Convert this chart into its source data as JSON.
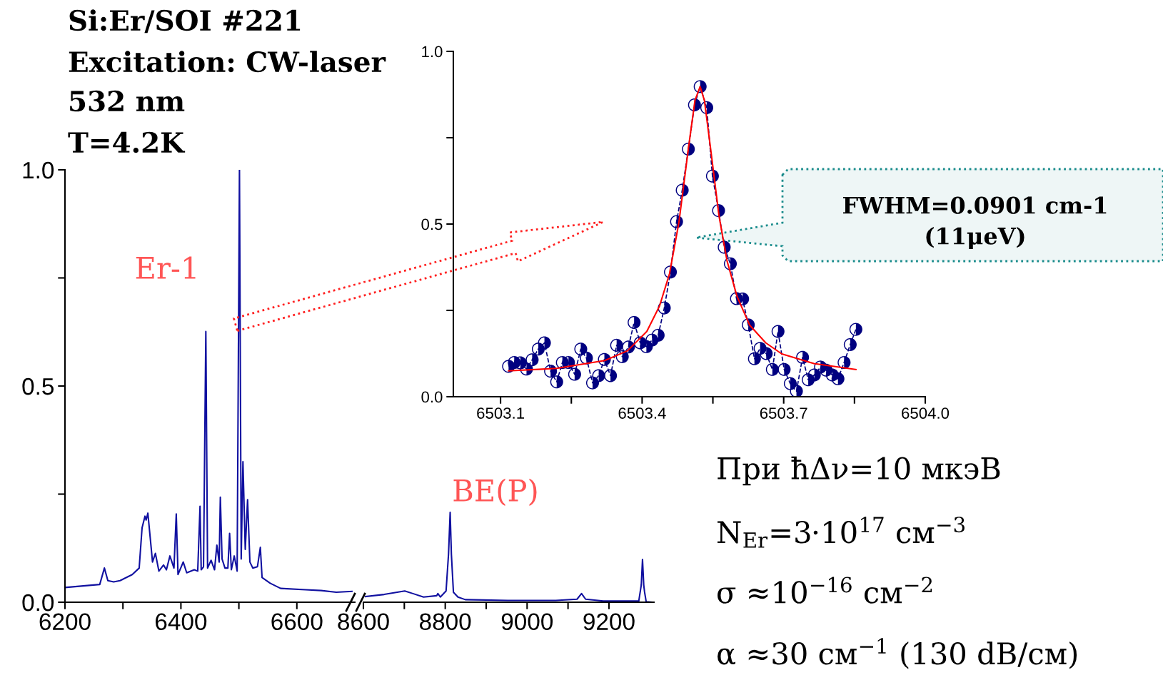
{
  "chart_data": [
    {
      "type": "line",
      "xlim": [
        6200,
        6700
      ],
      "ylim": [
        0,
        1.0
      ],
      "xticks": [
        6200,
        {
          "value": 6300,
          "label": null
        },
        6400,
        {
          "value": 6500,
          "label": null
        },
        6600
      ],
      "yticks": [
        {
          "value": 0,
          "label": "0.0"
        },
        {
          "value": 0.25,
          "label": null
        },
        {
          "value": 0.5,
          "label": "0.5"
        },
        {
          "value": 0.75,
          "label": null
        },
        {
          "value": 1.0,
          "label": "1.0"
        }
      ],
      "annotations": [
        "Si:Er/SOI #221",
        "Excitation: CW-laser",
        "532 nm",
        "T=4.2K",
        "Er-1"
      ],
      "series": [
        {
          "color": "#1010a0",
          "x": [
            6200,
            6242,
            6260,
            6268,
            6274,
            6284,
            6295,
            6316,
            6328,
            6333,
            6338,
            6340,
            6343,
            6347,
            6351,
            6356,
            6362,
            6370,
            6375,
            6381,
            6388,
            6392,
            6395,
            6404,
            6410,
            6423,
            6429,
            6433,
            6435,
            6439,
            6443,
            6446,
            6452,
            6458,
            6462,
            6466,
            6468,
            6471,
            6476,
            6481,
            6484,
            6487,
            6492,
            6497,
            6501,
            6504,
            6507,
            6511,
            6515,
            6519,
            6524,
            6532,
            6537,
            6540,
            6554,
            6572,
            6615,
            6642,
            6668,
            6695
          ],
          "values": [
            0.034,
            0.039,
            0.041,
            0.079,
            0.05,
            0.047,
            0.05,
            0.064,
            0.079,
            0.172,
            0.199,
            0.19,
            0.206,
            0.15,
            0.093,
            0.113,
            0.072,
            0.086,
            0.075,
            0.107,
            0.079,
            0.204,
            0.064,
            0.093,
            0.068,
            0.075,
            0.072,
            0.222,
            0.075,
            0.082,
            0.626,
            0.079,
            0.097,
            0.075,
            0.132,
            0.093,
            0.243,
            0.1,
            0.079,
            0.079,
            0.159,
            0.075,
            0.107,
            0.072,
            1.0,
            0.1,
            0.325,
            0.122,
            0.237,
            0.093,
            0.079,
            0.082,
            0.127,
            0.057,
            0.044,
            0.032,
            0.029,
            0.027,
            0.023,
            0.025
          ]
        }
      ]
    },
    {
      "type": "line",
      "xlim": [
        8600,
        9310
      ],
      "ylim": [
        0,
        1.0
      ],
      "tick_labels": "x",
      "xticks": [
        8600,
        {
          "value": 8700,
          "label": null
        },
        8800,
        {
          "value": 8900,
          "label": null
        },
        9000,
        {
          "value": 9100,
          "label": null
        },
        9200
      ],
      "annotations": [
        "BE(P)",
        "При ħΔν=10 мкэВ",
        "N$_{Er}$=3·10$^{17}$ см$^{−3}$",
        "σ ≈10$^{−16}$ см$^{−2}$",
        "α ≈30 см$^{−1}$ (130 dB/см)"
      ],
      "series": [
        {
          "color": "#1010a0",
          "x": [
            8605,
            8651,
            8701,
            8721,
            8747,
            8779,
            8782,
            8788,
            8802,
            8808,
            8812,
            8815,
            8820,
            8831,
            8849,
            8953,
            9070,
            9122,
            9133,
            9143,
            9186,
            9273,
            9279,
            9282,
            9285,
            9287,
            9291,
            9305
          ],
          "values": [
            0.013,
            0.018,
            0.026,
            0.02,
            0.012,
            0.015,
            0.02,
            0.012,
            0.026,
            0.111,
            0.208,
            0.111,
            0.023,
            0.012,
            0.006,
            0.004,
            0.004,
            0.007,
            0.02,
            0.007,
            0.003,
            0.003,
            0.04,
            0.099,
            0.04,
            0.024,
            0.001,
            0.0
          ]
        }
      ]
    },
    {
      "type": "line",
      "xlim": [
        6503.0,
        6504.0
      ],
      "ylim": [
        0,
        1.0
      ],
      "xticks": [
        {
          "value": 6503.1,
          "label": "6503.1"
        },
        {
          "value": 6503.25,
          "label": null
        },
        {
          "value": 6503.4,
          "label": "6503.4"
        },
        {
          "value": 6503.55,
          "label": null
        },
        {
          "value": 6503.7,
          "label": "6503.7"
        },
        {
          "value": 6503.85,
          "label": null
        },
        {
          "value": 6504.0,
          "label": "6504.0"
        }
      ],
      "yticks": [
        {
          "value": 0,
          "label": "0.0"
        },
        {
          "value": 0.25,
          "label": null
        },
        {
          "value": 0.5,
          "label": "0.5"
        },
        {
          "value": 0.75,
          "label": null
        },
        {
          "value": 1.0,
          "label": "1.0"
        }
      ],
      "annotations": [
        "FWHM=0.0901 cm-1\n(11μeV)"
      ],
      "series": [
        {
          "color": "#000080",
          "marker": "circle",
          "line_style": "dashed",
          "x": [
            6503.117,
            6503.129,
            6503.142,
            6503.155,
            6503.167,
            6503.18,
            6503.193,
            6503.206,
            6503.219,
            6503.231,
            6503.244,
            6503.257,
            6503.27,
            6503.282,
            6503.295,
            6503.308,
            6503.32,
            6503.333,
            6503.346,
            6503.358,
            6503.371,
            6503.383,
            6503.396,
            6503.409,
            6503.421,
            6503.434,
            6503.447,
            6503.46,
            6503.473,
            6503.485,
            6503.498,
            6503.511,
            6503.523,
            6503.537,
            6503.549,
            6503.562,
            6503.574,
            6503.587,
            6503.6,
            6503.613,
            6503.625,
            6503.638,
            6503.65,
            6503.663,
            6503.676,
            6503.688,
            6503.701,
            6503.714,
            6503.727,
            6503.74,
            6503.752,
            6503.765,
            6503.778,
            6503.79,
            6503.803,
            6503.815,
            6503.828,
            6503.841,
            6503.853
          ],
          "values": [
            0.088,
            0.099,
            0.098,
            0.08,
            0.107,
            0.138,
            0.156,
            0.074,
            0.043,
            0.099,
            0.099,
            0.065,
            0.138,
            0.112,
            0.04,
            0.061,
            0.108,
            0.061,
            0.149,
            0.116,
            0.144,
            0.215,
            0.156,
            0.145,
            0.164,
            0.178,
            0.257,
            0.361,
            0.507,
            0.598,
            0.717,
            0.845,
            0.898,
            0.837,
            0.639,
            0.539,
            0.433,
            0.385,
            0.284,
            0.283,
            0.208,
            0.11,
            0.14,
            0.125,
            0.079,
            0.189,
            0.079,
            0.038,
            0.016,
            0.114,
            0.049,
            0.063,
            0.086,
            0.077,
            0.063,
            0.052,
            0.099,
            0.151,
            0.195
          ]
        },
        {
          "color": "#ff0000",
          "line_style": "solid",
          "x": [
            6503.117,
            6503.219,
            6503.321,
            6503.369,
            6503.41,
            6503.437,
            6503.458,
            6503.478,
            6503.498,
            6503.512,
            6503.523,
            6503.532,
            6503.546,
            6503.563,
            6503.58,
            6503.601,
            6503.628,
            6503.662,
            6503.696,
            6503.764,
            6503.853
          ],
          "values": [
            0.075,
            0.082,
            0.105,
            0.133,
            0.189,
            0.263,
            0.356,
            0.505,
            0.718,
            0.858,
            0.898,
            0.858,
            0.709,
            0.523,
            0.393,
            0.291,
            0.207,
            0.156,
            0.124,
            0.096,
            0.079
          ]
        }
      ]
    }
  ]
}
